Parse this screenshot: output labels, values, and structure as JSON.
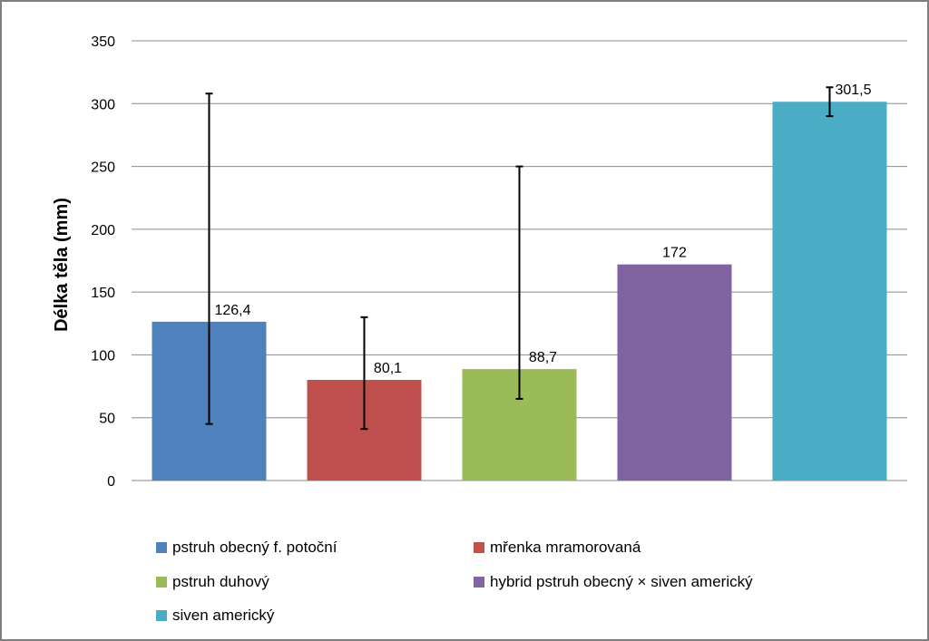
{
  "chart_data": {
    "type": "bar",
    "title": "",
    "xlabel": "",
    "ylabel": "Délka těla (mm)",
    "ylim": [
      0,
      350
    ],
    "yticks": [
      0,
      50,
      100,
      150,
      200,
      250,
      300,
      350
    ],
    "grid": true,
    "legend_position": "bottom",
    "series": [
      {
        "name": "pstruh obecný f. potoční",
        "value": 126.4,
        "label": "126,4",
        "error_low": 45,
        "error_high": 308,
        "color": "#4f81bd"
      },
      {
        "name": "mřenka mramorovaná",
        "value": 80.1,
        "label": "80,1",
        "error_low": 41,
        "error_high": 130,
        "color": "#c0504d"
      },
      {
        "name": "pstruh duhový",
        "value": 88.7,
        "label": "88,7",
        "error_low": 65,
        "error_high": 250,
        "color": "#9bbb59"
      },
      {
        "name": "hybrid pstruh obecný × siven americký",
        "value": 172,
        "label": "172",
        "error_low": null,
        "error_high": null,
        "color": "#8064a2"
      },
      {
        "name": "siven americký",
        "value": 301.5,
        "label": "301,5",
        "error_low": 290,
        "error_high": 313,
        "color": "#4bacc6"
      }
    ]
  }
}
